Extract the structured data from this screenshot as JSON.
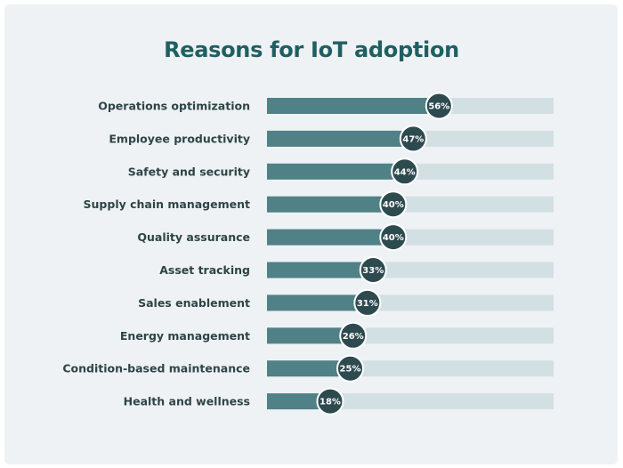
{
  "chart_data": {
    "type": "bar",
    "orientation": "horizontal",
    "title": "Reasons for IoT adoption",
    "categories": [
      "Operations optimization",
      "Employee productivity",
      "Safety and security",
      "Supply chain management",
      "Quality assurance",
      "Asset tracking",
      "Sales enablement",
      "Energy management",
      "Condition-based maintenance",
      "Health and wellness"
    ],
    "values": [
      56,
      47,
      44,
      40,
      40,
      33,
      31,
      26,
      25,
      18
    ],
    "value_labels": [
      "56%",
      "47%",
      "44%",
      "40%",
      "40%",
      "33%",
      "31%",
      "26%",
      "25%",
      "18%"
    ],
    "unit": "%",
    "xlim": [
      0,
      100
    ],
    "grid": false,
    "legend": "none",
    "colors": {
      "bar_fill": "#4f8186",
      "bar_track": "#d3e0e3",
      "marker": "#2d4a4f",
      "marker_stroke": "#ffffff",
      "title": "#1f5f62",
      "label": "#2e4447",
      "background": "#eef2f4"
    }
  }
}
